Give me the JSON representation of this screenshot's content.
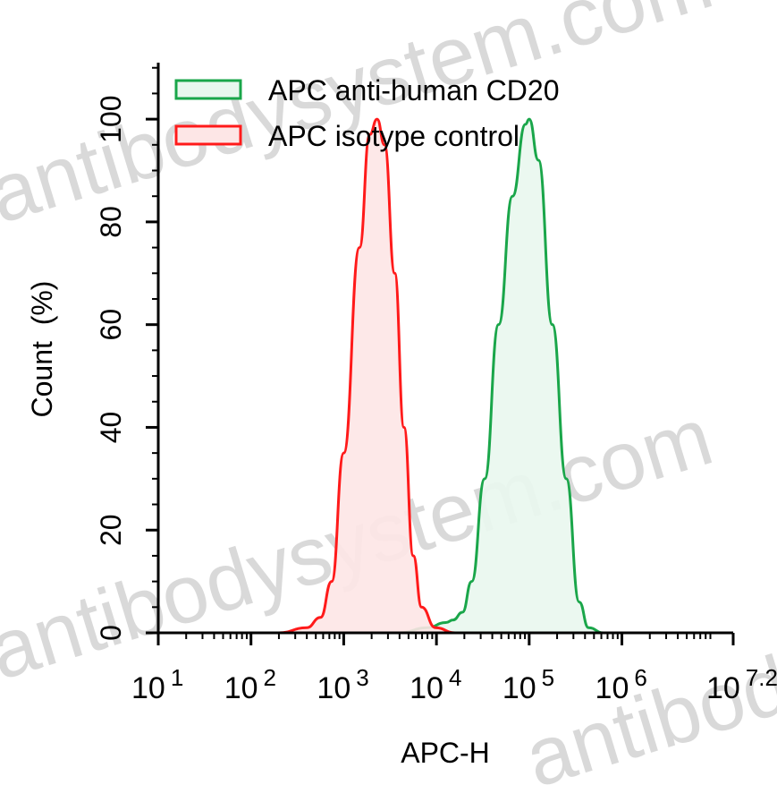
{
  "chart_data": {
    "type": "area",
    "title": "",
    "xlabel": "APC-H",
    "ylabel": "Count  (%)",
    "x_scale": "log10",
    "xlim": [
      1,
      7.2
    ],
    "ylim": [
      0,
      111
    ],
    "x_ticks": [
      {
        "base": "10",
        "exp": "1",
        "value": 1
      },
      {
        "base": "10",
        "exp": "2",
        "value": 2
      },
      {
        "base": "10",
        "exp": "3",
        "value": 3
      },
      {
        "base": "10",
        "exp": "4",
        "value": 4
      },
      {
        "base": "10",
        "exp": "5",
        "value": 5
      },
      {
        "base": "10",
        "exp": "6",
        "value": 6
      },
      {
        "base": "10",
        "exp": "7.2",
        "value": 7.2
      }
    ],
    "y_ticks": [
      "0",
      "20",
      "40",
      "60",
      "80",
      "100"
    ],
    "grid": false,
    "legend_position": "top-left",
    "series": [
      {
        "name": "APC anti-human CD20",
        "color": "#1aa64a",
        "fill": "#e9f7ee",
        "log10_x": [
          3.6,
          3.9,
          4.1,
          4.18,
          4.28,
          4.38,
          4.52,
          4.67,
          4.82,
          4.96,
          5.0,
          5.1,
          5.25,
          5.4,
          5.54,
          5.64,
          5.8
        ],
        "y": [
          0,
          1,
          2,
          2.5,
          4,
          10,
          30,
          60,
          85,
          99,
          100,
          92,
          60,
          30,
          6,
          1,
          0
        ]
      },
      {
        "name": "APC isotype control",
        "color": "#ff1a1a",
        "fill": "#fde6e6",
        "log10_x": [
          2.3,
          2.6,
          2.75,
          2.87,
          3.0,
          3.17,
          3.28,
          3.36,
          3.44,
          3.55,
          3.65,
          3.75,
          3.84,
          3.99,
          4.2
        ],
        "y": [
          0,
          1,
          3,
          10,
          35,
          75,
          97,
          100,
          95,
          70,
          40,
          15,
          5,
          1,
          0
        ]
      }
    ],
    "watermark": "antibodysystem.com"
  }
}
